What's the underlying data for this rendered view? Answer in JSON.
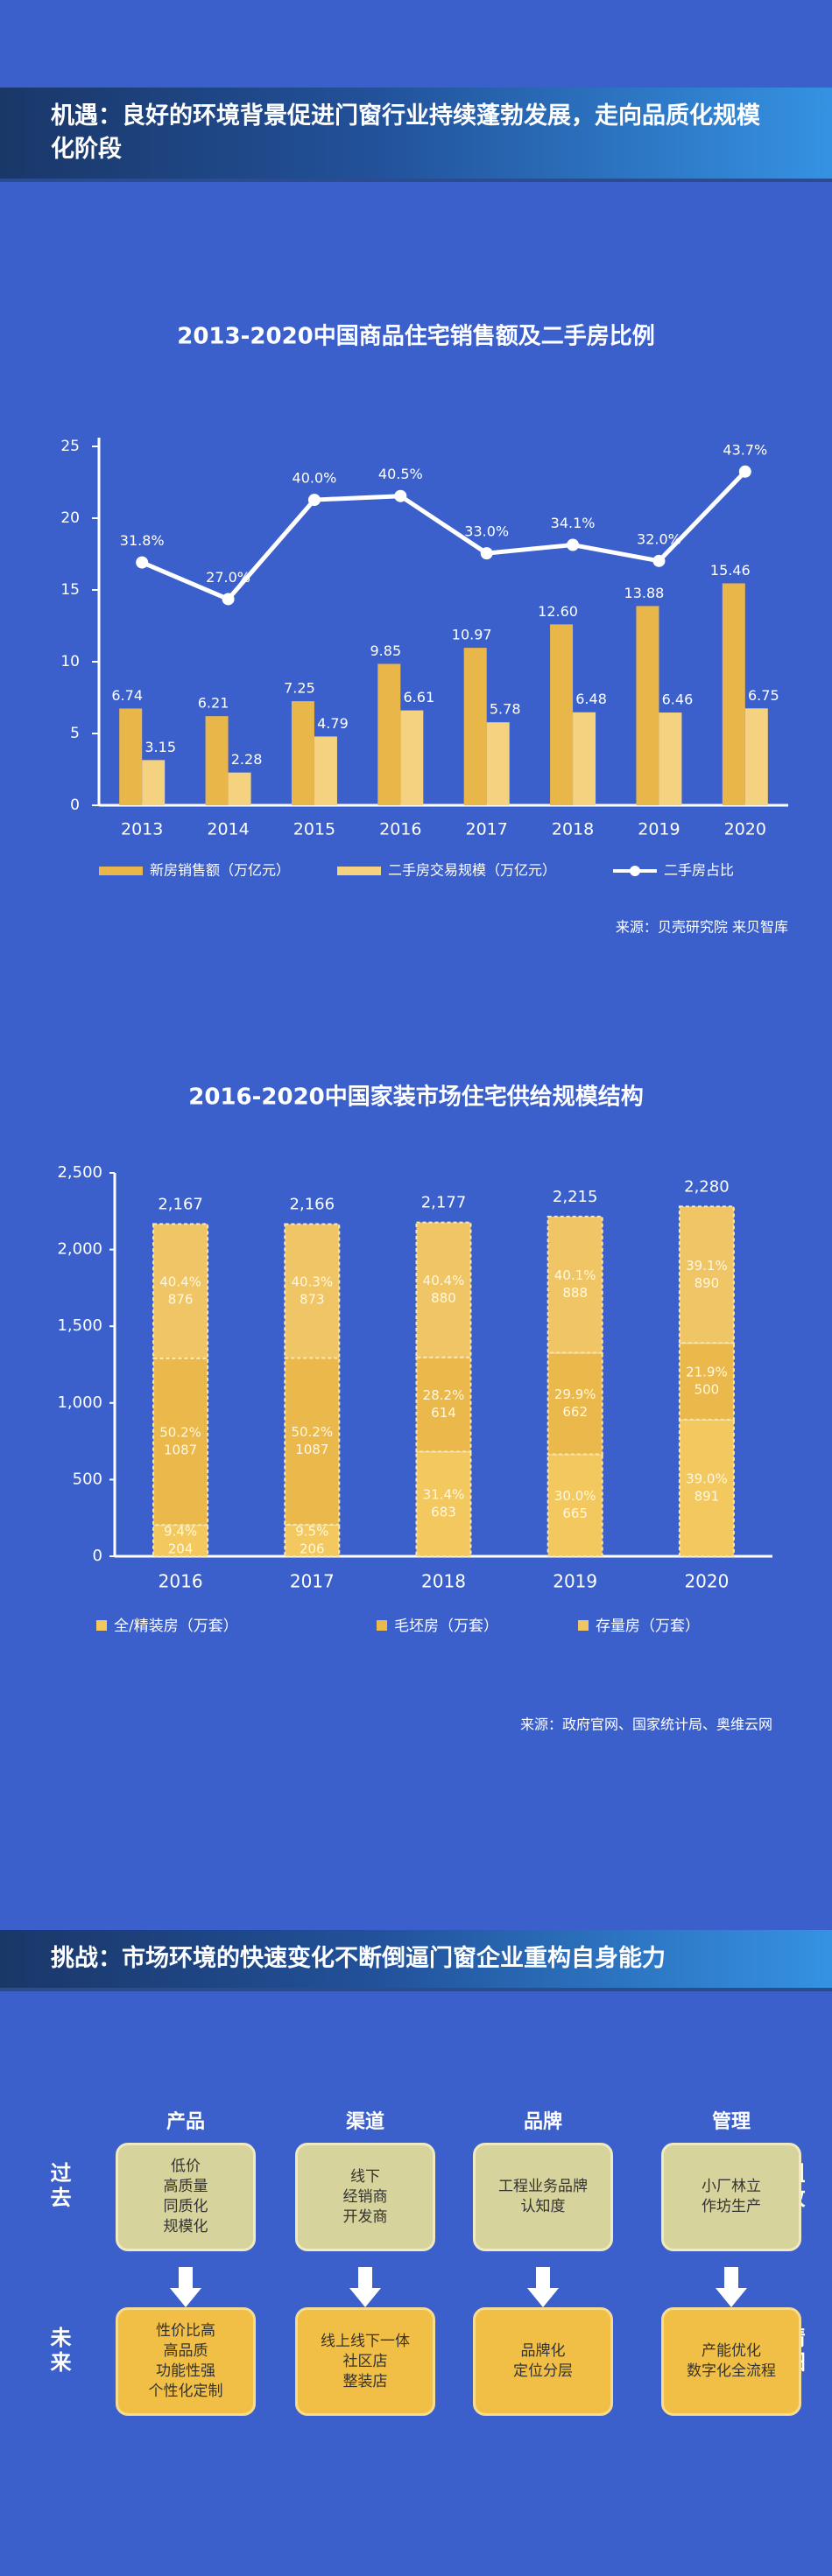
{
  "header1": {
    "title": "机遇：良好的环境背景促进门窗行业持续蓬勃发展，走向品质化规模化阶段"
  },
  "chart_data": [
    {
      "type": "bar-line",
      "title": "2013-2020中国商品住宅销售额及二手房比例",
      "categories": [
        "2013",
        "2014",
        "2015",
        "2016",
        "2017",
        "2018",
        "2019",
        "2020"
      ],
      "ylim": [
        0,
        25
      ],
      "yticks": [
        0,
        5,
        10,
        15,
        20,
        25
      ],
      "y2lim": [
        0,
        47
      ],
      "series": [
        {
          "name": "新房销售额（万亿元）",
          "color": "#e9b649",
          "values": [
            6.74,
            6.21,
            7.25,
            9.85,
            10.97,
            12.6,
            13.88,
            15.46
          ],
          "value_labels": [
            "6.74",
            "6.21",
            "7.25",
            "9.85",
            "10.97",
            "12.60",
            "13.88",
            "15.46"
          ]
        },
        {
          "name": "二手房交易规模（万亿元）",
          "color": "#f4d27f",
          "values": [
            3.15,
            2.28,
            4.79,
            6.61,
            5.78,
            6.48,
            6.46,
            6.75
          ]
        },
        {
          "name": "二手房占比",
          "color": "#ffffff",
          "type": "line",
          "axis": "y2",
          "values": [
            31.8,
            27.0,
            40.0,
            40.5,
            33.0,
            34.1,
            32.0,
            43.7
          ],
          "value_labels": [
            "31.8%",
            "27.0%",
            "40.0%",
            "40.5%",
            "33.0%",
            "34.1%",
            "32.0%",
            "43.7%"
          ]
        }
      ],
      "source": "来源：贝壳研究院  来贝智库"
    },
    {
      "type": "stacked-bar",
      "title": "2016-2020中国家装市场住宅供给规模结构",
      "categories": [
        "2016",
        "2017",
        "2018",
        "2019",
        "2020"
      ],
      "ylim": [
        0,
        2500
      ],
      "yticks": [
        0,
        500,
        {
          "value": 1000,
          "label": "1,000"
        },
        {
          "value": 1500,
          "label": "1,500"
        },
        {
          "value": 2000,
          "label": "2,000"
        },
        {
          "value": 2500,
          "label": "2,500"
        }
      ],
      "series": [
        {
          "name": "全/精装房（万套）",
          "color": "#f3c85e",
          "values": [
            204,
            206,
            683,
            665,
            891
          ],
          "shares": [
            "9.4%",
            "9.5%",
            "31.4%",
            "30.0%",
            "39.0%"
          ]
        },
        {
          "name": "毛坯房（万套）",
          "color": "#ebb84c",
          "values": [
            1087,
            1087,
            614,
            662,
            500
          ],
          "shares": [
            "50.2%",
            "50.2%",
            "28.2%",
            "29.9%",
            "21.9%"
          ]
        },
        {
          "name": "存量房（万套）",
          "color": "#f0c566",
          "values": [
            876,
            873,
            880,
            888,
            890
          ],
          "shares": [
            "40.4%",
            "40.3%",
            "40.4%",
            "40.1%",
            "39.1%"
          ]
        }
      ],
      "total_labels": [
        "2,167",
        "2,166",
        "2,177",
        "2,215",
        "2,280"
      ],
      "source": "来源：政府官网、国家统计局、奥维云网"
    }
  ],
  "header2": {
    "title": "挑战：市场环境的快速变化不断倒逼门窗企业重构自身能力"
  },
  "diagram": {
    "columns": [
      "产品",
      "渠道",
      "品牌",
      "管理"
    ],
    "rows": [
      {
        "left": "过去",
        "right": "粗放",
        "items": [
          [
            "低价",
            "高质量",
            "同质化",
            "规模化"
          ],
          [
            "线下",
            "经销商",
            "开发商"
          ],
          [
            "工程业务品牌",
            "认知度"
          ],
          [
            "小厂林立",
            "作坊生产"
          ]
        ]
      },
      {
        "left": "未来",
        "right": "精细",
        "items": [
          [
            "性价比高",
            "高品质",
            "功能性强",
            "个性化定制"
          ],
          [
            "线上线下一体",
            "社区店",
            "整装店"
          ],
          [
            "品牌化",
            "定位分层"
          ],
          [
            "产能优化",
            "数字化全流程"
          ]
        ]
      }
    ]
  }
}
